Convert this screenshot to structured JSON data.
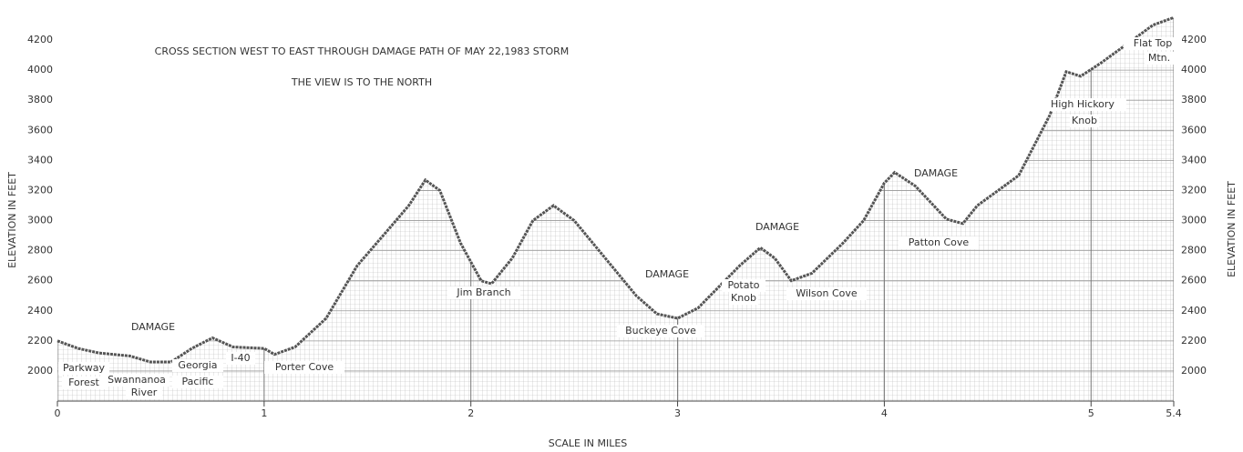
{
  "chart_data": {
    "type": "line",
    "title": "CROSS SECTION WEST TO EAST THROUGH DAMAGE PATH OF MAY 22,1983 STORM",
    "subtitle": "THE VIEW IS TO THE NORTH",
    "y_label": "ELEVATION IN FEET",
    "y2_label": "ELEVATION IN FEET",
    "x_label": "SCALE IN MILES",
    "x": [
      0,
      0.1,
      0.2,
      0.35,
      0.45,
      0.55,
      0.65,
      0.75,
      0.85,
      1.0,
      1.05,
      1.15,
      1.3,
      1.45,
      1.6,
      1.7,
      1.78,
      1.85,
      1.95,
      2.05,
      2.1,
      2.2,
      2.3,
      2.4,
      2.5,
      2.65,
      2.8,
      2.9,
      3.0,
      3.1,
      3.2,
      3.3,
      3.4,
      3.47,
      3.55,
      3.65,
      3.8,
      3.9,
      4.0,
      4.05,
      4.15,
      4.3,
      4.38,
      4.45,
      4.55,
      4.65,
      4.8,
      4.88,
      4.95,
      5.05,
      5.2,
      5.3,
      5.4
    ],
    "series": [
      {
        "color": "#555555",
        "values": [
          2200,
          2150,
          2120,
          2100,
          2060,
          2060,
          2150,
          2220,
          2160,
          2150,
          2110,
          2160,
          2350,
          2700,
          2940,
          3100,
          3270,
          3200,
          2850,
          2600,
          2580,
          2750,
          3000,
          3100,
          3000,
          2750,
          2500,
          2380,
          2350,
          2420,
          2560,
          2700,
          2820,
          2750,
          2600,
          2650,
          2850,
          3000,
          3250,
          3320,
          3230,
          3010,
          2980,
          3100,
          3200,
          3300,
          3700,
          3990,
          3960,
          4050,
          4200,
          4300,
          4350
        ]
      }
    ],
    "xlim": [
      0,
      5.4
    ],
    "xticks": [
      0,
      1,
      2,
      3,
      4,
      5,
      5.4
    ],
    "ylim": [
      1800,
      4400
    ],
    "yticks": [
      2000,
      2200,
      2400,
      2600,
      2800,
      3000,
      3200,
      3400,
      3600,
      3800,
      4000,
      4200
    ],
    "y2lim": [
      1800,
      4400
    ],
    "y2ticks": [
      2000,
      2200,
      2400,
      2600,
      2800,
      3000,
      3200,
      3400,
      3600,
      3800,
      4000,
      4200
    ],
    "grid": true,
    "annotations": [
      "DAMAGE",
      "Parkway",
      "Forest",
      "Swannanoa",
      "River",
      "Georgia",
      "Pacific",
      "I-40",
      "Porter Cove",
      "Jim Branch",
      "Buckeye Cove",
      "DAMAGE",
      "Potato",
      "Knob",
      "DAMAGE",
      "Wilson Cove",
      "DAMAGE",
      "Patton Cove",
      "High Hickory",
      "Knob",
      "Flat Top",
      "Mtn."
    ]
  }
}
